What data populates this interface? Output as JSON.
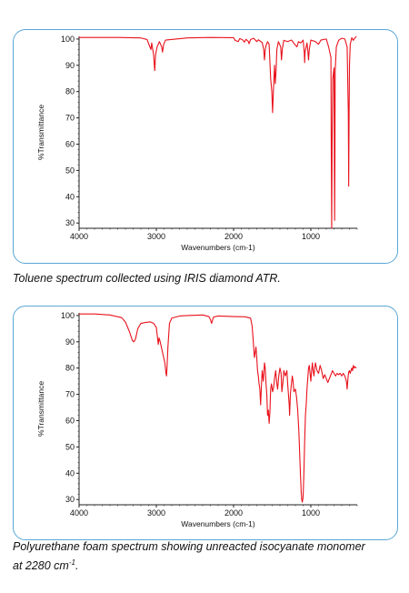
{
  "colors": {
    "line": "#e8121c",
    "frame": "#5aa7d6",
    "axis": "#222222"
  },
  "chart_data": [
    {
      "type": "line",
      "title": "",
      "xlabel": "Wavenumbers (cm-1)",
      "ylabel": "%Transmittance",
      "xlim": [
        4000,
        400
      ],
      "ylim": [
        28,
        101
      ],
      "x_ticks": [
        4000,
        3000,
        2000,
        1000
      ],
      "y_ticks": [
        100,
        90,
        80,
        70,
        60,
        50,
        40,
        30
      ],
      "caption": "Toluene spectrum collected using IRIS diamond ATR.",
      "series": [
        {
          "points": [
            [
              4000,
              100.6
            ],
            [
              3500,
              100.6
            ],
            [
              3200,
              100.4
            ],
            [
              3120,
              99.8
            ],
            [
              3090,
              97.5
            ],
            [
              3070,
              96
            ],
            [
              3060,
              98.5
            ],
            [
              3035,
              94
            ],
            [
              3026,
              90
            ],
            [
              3020,
              88
            ],
            [
              3010,
              94
            ],
            [
              2990,
              97
            ],
            [
              2960,
              99
            ],
            [
              2930,
              97
            ],
            [
              2920,
              95
            ],
            [
              2905,
              98
            ],
            [
              2880,
              99.6
            ],
            [
              2600,
              100.4
            ],
            [
              2300,
              100.6
            ],
            [
              2000,
              100.5
            ],
            [
              1980,
              99.5
            ],
            [
              1940,
              99
            ],
            [
              1920,
              100.2
            ],
            [
              1880,
              99.6
            ],
            [
              1860,
              98.8
            ],
            [
              1840,
              99.9
            ],
            [
              1810,
              99.1
            ],
            [
              1800,
              98.2
            ],
            [
              1780,
              99.8
            ],
            [
              1740,
              100.3
            ],
            [
              1700,
              99
            ],
            [
              1680,
              99.7
            ],
            [
              1630,
              98.7
            ],
            [
              1610,
              96
            ],
            [
              1600,
              92
            ],
            [
              1590,
              96
            ],
            [
              1580,
              97.5
            ],
            [
              1560,
              99
            ],
            [
              1540,
              98
            ],
            [
              1520,
              85
            ],
            [
              1505,
              80
            ],
            [
              1495,
              72
            ],
            [
              1485,
              80
            ],
            [
              1470,
              90
            ],
            [
              1460,
              83
            ],
            [
              1450,
              88
            ],
            [
              1440,
              96
            ],
            [
              1420,
              99
            ],
            [
              1390,
              97
            ],
            [
              1380,
              92
            ],
            [
              1370,
              96
            ],
            [
              1350,
              99.5
            ],
            [
              1300,
              99
            ],
            [
              1250,
              99.6
            ],
            [
              1210,
              98
            ],
            [
              1180,
              97
            ],
            [
              1160,
              99
            ],
            [
              1130,
              98.5
            ],
            [
              1100,
              99.6
            ],
            [
              1085,
              95
            ],
            [
              1080,
              91
            ],
            [
              1075,
              95
            ],
            [
              1050,
              98.5
            ],
            [
              1040,
              96
            ],
            [
              1030,
              92
            ],
            [
              1020,
              96
            ],
            [
              1000,
              99.6
            ],
            [
              940,
              99
            ],
            [
              900,
              98
            ],
            [
              870,
              99.6
            ],
            [
              800,
              100
            ],
            [
              770,
              97
            ],
            [
              740,
              93
            ],
            [
              736,
              60
            ],
            [
              730,
              28
            ],
            [
              725,
              60
            ],
            [
              716,
              85
            ],
            [
              700,
              89
            ],
            [
              696,
              55
            ],
            [
              692,
              31
            ],
            [
              688,
              55
            ],
            [
              685,
              88
            ],
            [
              670,
              97
            ],
            [
              640,
              99.5
            ],
            [
              600,
              100.3
            ],
            [
              560,
              100
            ],
            [
              530,
              97
            ],
            [
              520,
              80
            ],
            [
              515,
              72
            ],
            [
              510,
              44
            ],
            [
              505,
              70
            ],
            [
              500,
              90
            ],
            [
              490,
              98
            ],
            [
              470,
              100.5
            ],
            [
              450,
              99.5
            ],
            [
              430,
              100.4
            ],
            [
              410,
              101
            ]
          ]
        }
      ]
    },
    {
      "type": "line",
      "title": "",
      "xlabel": "Wavenumbers (cm-1)",
      "ylabel": "%Transmittance",
      "xlim": [
        4000,
        400
      ],
      "ylim": [
        28,
        101
      ],
      "x_ticks": [
        4000,
        3000,
        2000,
        1000
      ],
      "y_ticks": [
        100,
        90,
        80,
        70,
        60,
        50,
        40,
        30
      ],
      "caption": "Polyurethane foam spectrum showing unreacted isocyanate monomer",
      "caption_line2": "at 2280 cm",
      "caption_sup": "-1",
      "caption_end": ".",
      "series": [
        {
          "points": [
            [
              4000,
              100.6
            ],
            [
              3800,
              100.6
            ],
            [
              3600,
              100.2
            ],
            [
              3450,
              99.2
            ],
            [
              3400,
              97.5
            ],
            [
              3350,
              94
            ],
            [
              3310,
              90.5
            ],
            [
              3290,
              90
            ],
            [
              3270,
              91
            ],
            [
              3240,
              95
            ],
            [
              3200,
              97
            ],
            [
              3150,
              97.3
            ],
            [
              3080,
              97.6
            ],
            [
              3035,
              97
            ],
            [
              3000,
              95.5
            ],
            [
              2975,
              89
            ],
            [
              2965,
              91.5
            ],
            [
              2950,
              90
            ],
            [
              2935,
              88
            ],
            [
              2920,
              86
            ],
            [
              2905,
              84
            ],
            [
              2890,
              82
            ],
            [
              2875,
              78
            ],
            [
              2868,
              77
            ],
            [
              2862,
              80
            ],
            [
              2850,
              88
            ],
            [
              2830,
              97
            ],
            [
              2800,
              99
            ],
            [
              2700,
              99.8
            ],
            [
              2600,
              100
            ],
            [
              2400,
              100.2
            ],
            [
              2320,
              99.6
            ],
            [
              2300,
              98.5
            ],
            [
              2285,
              97
            ],
            [
              2275,
              98
            ],
            [
              2260,
              99.4
            ],
            [
              2200,
              99.8
            ],
            [
              2000,
              99.6
            ],
            [
              1850,
              99.5
            ],
            [
              1780,
              99
            ],
            [
              1760,
              96
            ],
            [
              1740,
              88
            ],
            [
              1730,
              84
            ],
            [
              1720,
              86
            ],
            [
              1710,
              88
            ],
            [
              1700,
              84
            ],
            [
              1690,
              79
            ],
            [
              1680,
              77
            ],
            [
              1670,
              74
            ],
            [
              1660,
              72
            ],
            [
              1650,
              66
            ],
            [
              1640,
              73
            ],
            [
              1630,
              79
            ],
            [
              1615,
              75
            ],
            [
              1600,
              82
            ],
            [
              1590,
              80
            ],
            [
              1580,
              74
            ],
            [
              1570,
              70
            ],
            [
              1560,
              62
            ],
            [
              1550,
              64
            ],
            [
              1540,
              59
            ],
            [
              1530,
              63
            ],
            [
              1520,
              72
            ],
            [
              1510,
              74
            ],
            [
              1495,
              71
            ],
            [
              1480,
              73
            ],
            [
              1470,
              76
            ],
            [
              1455,
              79
            ],
            [
              1440,
              74
            ],
            [
              1430,
              72
            ],
            [
              1415,
              77
            ],
            [
              1400,
              80
            ],
            [
              1385,
              78
            ],
            [
              1375,
              71
            ],
            [
              1360,
              75
            ],
            [
              1350,
              79
            ],
            [
              1330,
              77
            ],
            [
              1310,
              79
            ],
            [
              1300,
              74
            ],
            [
              1290,
              70
            ],
            [
              1280,
              66
            ],
            [
              1275,
              62
            ],
            [
              1265,
              70
            ],
            [
              1255,
              73
            ],
            [
              1240,
              77
            ],
            [
              1230,
              75
            ],
            [
              1220,
              71
            ],
            [
              1200,
              72
            ],
            [
              1185,
              69
            ],
            [
              1170,
              64
            ],
            [
              1155,
              56
            ],
            [
              1145,
              48
            ],
            [
              1135,
              40
            ],
            [
              1125,
              33
            ],
            [
              1118,
              30
            ],
            [
              1110,
              29
            ],
            [
              1100,
              31
            ],
            [
              1090,
              40
            ],
            [
              1080,
              52
            ],
            [
              1070,
              62
            ],
            [
              1060,
              66
            ],
            [
              1050,
              72
            ],
            [
              1040,
              76
            ],
            [
              1030,
              80
            ],
            [
              1020,
              81
            ],
            [
              1010,
              78
            ],
            [
              1000,
              75
            ],
            [
              990,
              79
            ],
            [
              980,
              82
            ],
            [
              970,
              79
            ],
            [
              960,
              77
            ],
            [
              950,
              80
            ],
            [
              940,
              82
            ],
            [
              920,
              79
            ],
            [
              900,
              78
            ],
            [
              880,
              81
            ],
            [
              860,
              79
            ],
            [
              840,
              76
            ],
            [
              820,
              77.5
            ],
            [
              800,
              76
            ],
            [
              780,
              74.5
            ],
            [
              760,
              76
            ],
            [
              740,
              77.5
            ],
            [
              720,
              79
            ],
            [
              700,
              78
            ],
            [
              680,
              77
            ],
            [
              660,
              78
            ],
            [
              640,
              77.5
            ],
            [
              620,
              78
            ],
            [
              600,
              77
            ],
            [
              580,
              78
            ],
            [
              560,
              77
            ],
            [
              540,
              75
            ],
            [
              530,
              72
            ],
            [
              520,
              76
            ],
            [
              510,
              78.5
            ],
            [
              500,
              79
            ],
            [
              490,
              78
            ],
            [
              480,
              79
            ],
            [
              470,
              80
            ],
            [
              460,
              79
            ],
            [
              450,
              81
            ],
            [
              440,
              80
            ],
            [
              430,
              80.5
            ],
            [
              410,
              80
            ]
          ]
        }
      ]
    }
  ]
}
